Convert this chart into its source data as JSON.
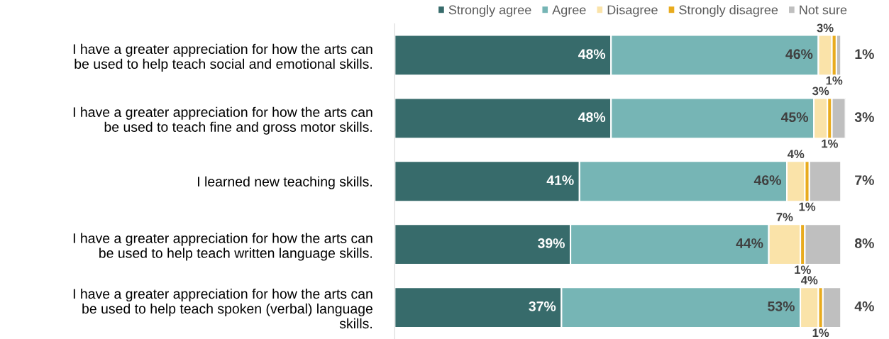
{
  "chart_data": {
    "type": "bar",
    "orientation": "horizontal",
    "stacked": true,
    "legend": "top",
    "grid": false,
    "xlim": [
      0,
      100
    ],
    "tick_labels": "y",
    "categories": [
      "I have a greater appreciation for how the arts can\nbe used to help teach social and emotional skills.",
      "I have a greater appreciation for how the arts can\nbe used to teach fine and gross motor skills.",
      "I learned new teaching skills.",
      "I have a greater appreciation for how the arts can\nbe used to help teach written language skills.",
      "I have a greater appreciation for how the arts can\nbe used to help teach spoken (verbal) language\nskills."
    ],
    "series": [
      {
        "name": "Strongly agree",
        "color": "#376b6b",
        "values": [
          48,
          48,
          41,
          39,
          37
        ],
        "value_labels": [
          "48%",
          "48%",
          "41%",
          "39%",
          "37%"
        ]
      },
      {
        "name": "Agree",
        "color": "#76b5b5",
        "values": [
          46,
          45,
          46,
          44,
          53
        ],
        "value_labels": [
          "46%",
          "45%",
          "46%",
          "44%",
          "53%"
        ]
      },
      {
        "name": "Disagree",
        "color": "#fae3a9",
        "values": [
          3,
          3,
          4,
          7,
          4
        ],
        "value_labels": [
          "3%",
          "3%",
          "4%",
          "7%",
          "4%"
        ]
      },
      {
        "name": "Strongly disagree",
        "color": "#e8ab1e",
        "values": [
          1,
          1,
          1,
          1,
          1
        ],
        "value_labels": [
          "1%",
          "1%",
          "1%",
          "1%",
          "1%"
        ]
      },
      {
        "name": "Not sure",
        "color": "#bfbfbf",
        "values": [
          1,
          3,
          7,
          8,
          4
        ],
        "value_labels": [
          "1%",
          "3%",
          "7%",
          "8%",
          "4%"
        ]
      }
    ]
  }
}
